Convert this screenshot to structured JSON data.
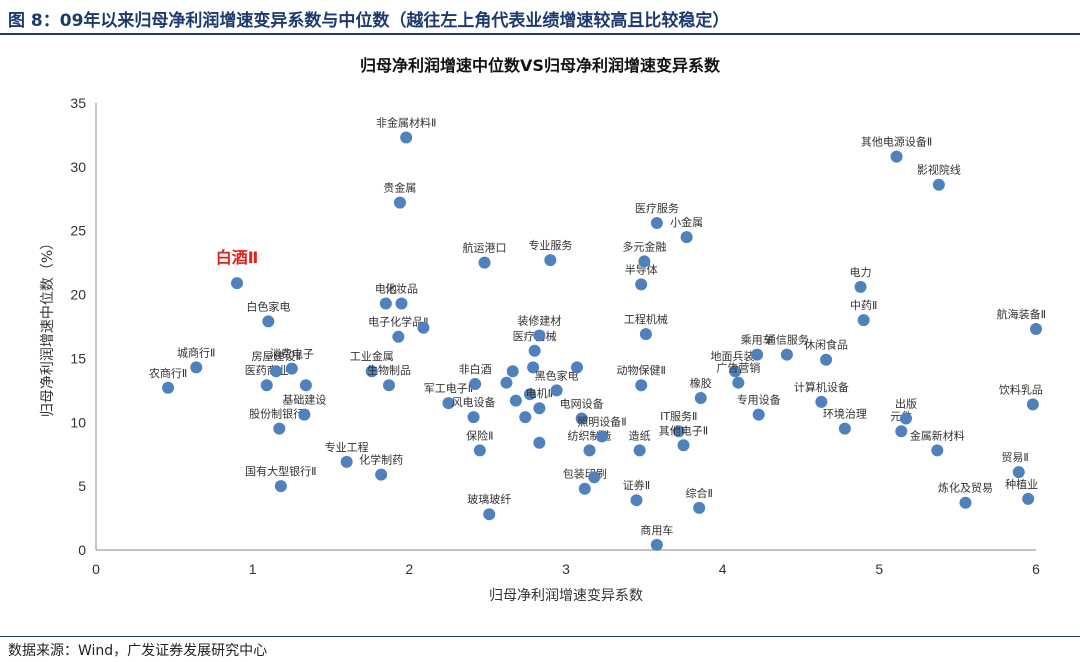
{
  "figure": {
    "header": "图 8：09年以来归母净利润增速变异系数与中位数（越往左上角代表业绩增速较高且比较稳定）",
    "source": "数据来源：Wind，广发证券发展研究中心"
  },
  "chart_data": {
    "type": "scatter",
    "title": "归母净利润增速中位数VS归母净利润增速变异系数",
    "xlabel": "归母净利润增速变异系数",
    "ylabel": "归母净利润增速中位数（%）",
    "xlim": [
      0,
      6
    ],
    "ylim": [
      0,
      35
    ],
    "xticks": [
      0,
      1,
      2,
      3,
      4,
      5,
      6
    ],
    "yticks": [
      0,
      5,
      10,
      15,
      20,
      25,
      30,
      35
    ],
    "grid": false,
    "marker_color": "#4f81bd",
    "highlight_color": "#e0221b",
    "points": [
      {
        "x": 0.46,
        "y": 12.7,
        "label": "农商行Ⅱ"
      },
      {
        "x": 0.64,
        "y": 14.3,
        "label": "城商行Ⅱ"
      },
      {
        "x": 0.9,
        "y": 20.9,
        "label": "白酒Ⅱ",
        "highlight": true
      },
      {
        "x": 1.09,
        "y": 12.9,
        "label": "医药商业"
      },
      {
        "x": 1.1,
        "y": 17.9,
        "label": "白色家电"
      },
      {
        "x": 1.15,
        "y": 14.0,
        "label": "房屋建设Ⅱ"
      },
      {
        "x": 1.17,
        "y": 9.5,
        "label": "股份制银行Ⅱ"
      },
      {
        "x": 1.18,
        "y": 5.0,
        "label": "国有大型银行Ⅱ"
      },
      {
        "x": 1.25,
        "y": 14.2,
        "label": "消费电子"
      },
      {
        "x": 1.33,
        "y": 10.6,
        "label": "基础建设"
      },
      {
        "x": 1.34,
        "y": 12.9,
        "label": ""
      },
      {
        "x": 1.6,
        "y": 6.9,
        "label": "专业工程"
      },
      {
        "x": 1.76,
        "y": 14.0,
        "label": "工业金属"
      },
      {
        "x": 1.82,
        "y": 5.9,
        "label": "化学制药"
      },
      {
        "x": 1.85,
        "y": 19.3,
        "label": "电池"
      },
      {
        "x": 1.87,
        "y": 12.9,
        "label": "生物制品"
      },
      {
        "x": 1.93,
        "y": 16.7,
        "label": "电子化学品Ⅱ"
      },
      {
        "x": 1.95,
        "y": 19.3,
        "label": "化妆品"
      },
      {
        "x": 1.94,
        "y": 27.2,
        "label": "贵金属"
      },
      {
        "x": 1.98,
        "y": 32.3,
        "label": "非金属材料Ⅱ"
      },
      {
        "x": 2.09,
        "y": 17.4,
        "label": ""
      },
      {
        "x": 2.25,
        "y": 11.5,
        "label": "军工电子Ⅱ"
      },
      {
        "x": 2.41,
        "y": 10.4,
        "label": "风电设备"
      },
      {
        "x": 2.42,
        "y": 13.0,
        "label": "非白酒"
      },
      {
        "x": 2.45,
        "y": 7.8,
        "label": "保险Ⅱ"
      },
      {
        "x": 2.48,
        "y": 22.5,
        "label": "航运港口"
      },
      {
        "x": 2.51,
        "y": 2.8,
        "label": "玻璃玻纤"
      },
      {
        "x": 2.62,
        "y": 13.1,
        "label": ""
      },
      {
        "x": 2.66,
        "y": 14.0,
        "label": ""
      },
      {
        "x": 2.68,
        "y": 11.7,
        "label": ""
      },
      {
        "x": 2.74,
        "y": 10.4,
        "label": ""
      },
      {
        "x": 2.77,
        "y": 12.2,
        "label": ""
      },
      {
        "x": 2.79,
        "y": 14.3,
        "label": ""
      },
      {
        "x": 2.8,
        "y": 15.6,
        "label": "医疗器械"
      },
      {
        "x": 2.83,
        "y": 16.8,
        "label": "装修建材"
      },
      {
        "x": 2.83,
        "y": 11.1,
        "label": "电机Ⅱ"
      },
      {
        "x": 2.83,
        "y": 8.4,
        "label": ""
      },
      {
        "x": 2.9,
        "y": 22.7,
        "label": "专业服务"
      },
      {
        "x": 2.94,
        "y": 12.5,
        "label": "黑色家电"
      },
      {
        "x": 3.07,
        "y": 14.3,
        "label": ""
      },
      {
        "x": 3.1,
        "y": 10.3,
        "label": "电网设备"
      },
      {
        "x": 3.12,
        "y": 4.8,
        "label": "包装印刷"
      },
      {
        "x": 3.15,
        "y": 7.8,
        "label": "纺织制造"
      },
      {
        "x": 3.18,
        "y": 5.7,
        "label": ""
      },
      {
        "x": 3.23,
        "y": 8.9,
        "label": "照明设备Ⅱ"
      },
      {
        "x": 3.45,
        "y": 3.9,
        "label": "证券Ⅱ"
      },
      {
        "x": 3.47,
        "y": 7.8,
        "label": "造纸"
      },
      {
        "x": 3.48,
        "y": 12.9,
        "label": "动物保健Ⅱ"
      },
      {
        "x": 3.48,
        "y": 20.8,
        "label": "半导体"
      },
      {
        "x": 3.5,
        "y": 22.6,
        "label": "多元金融"
      },
      {
        "x": 3.51,
        "y": 16.9,
        "label": "工程机械"
      },
      {
        "x": 3.58,
        "y": 25.6,
        "label": "医疗服务"
      },
      {
        "x": 3.58,
        "y": 0.4,
        "label": "商用车"
      },
      {
        "x": 3.72,
        "y": 9.3,
        "label": "IT服务Ⅱ"
      },
      {
        "x": 3.75,
        "y": 8.2,
        "label": "其他电子Ⅱ"
      },
      {
        "x": 3.77,
        "y": 24.5,
        "label": "小金属"
      },
      {
        "x": 3.85,
        "y": 3.3,
        "label": "综合Ⅱ"
      },
      {
        "x": 3.86,
        "y": 11.9,
        "label": "橡胶"
      },
      {
        "x": 4.08,
        "y": 14.0,
        "label": "地面兵装Ⅱ"
      },
      {
        "x": 4.1,
        "y": 13.1,
        "label": "广告营销"
      },
      {
        "x": 4.22,
        "y": 15.3,
        "label": "乘用车"
      },
      {
        "x": 4.23,
        "y": 10.6,
        "label": "专用设备"
      },
      {
        "x": 4.41,
        "y": 15.3,
        "label": "通信服务"
      },
      {
        "x": 4.63,
        "y": 11.6,
        "label": "计算机设备"
      },
      {
        "x": 4.66,
        "y": 14.9,
        "label": "休闲食品"
      },
      {
        "x": 4.78,
        "y": 9.5,
        "label": "环境治理"
      },
      {
        "x": 4.88,
        "y": 20.6,
        "label": "电力"
      },
      {
        "x": 4.9,
        "y": 18.0,
        "label": "中药Ⅱ"
      },
      {
        "x": 5.11,
        "y": 30.8,
        "label": "其他电源设备Ⅱ"
      },
      {
        "x": 5.14,
        "y": 9.3,
        "label": "元件"
      },
      {
        "x": 5.17,
        "y": 10.3,
        "label": "出版"
      },
      {
        "x": 5.37,
        "y": 7.8,
        "label": "金属新材料"
      },
      {
        "x": 5.38,
        "y": 28.6,
        "label": "影视院线"
      },
      {
        "x": 5.55,
        "y": 3.7,
        "label": "炼化及贸易"
      },
      {
        "x": 5.89,
        "y": 6.1,
        "label": "贸易Ⅱ"
      },
      {
        "x": 5.95,
        "y": 4.0,
        "label": "种植业"
      },
      {
        "x": 5.98,
        "y": 11.4,
        "label": "饮料乳品"
      },
      {
        "x": 6.0,
        "y": 17.3,
        "label": "航海装备Ⅱ"
      }
    ]
  }
}
